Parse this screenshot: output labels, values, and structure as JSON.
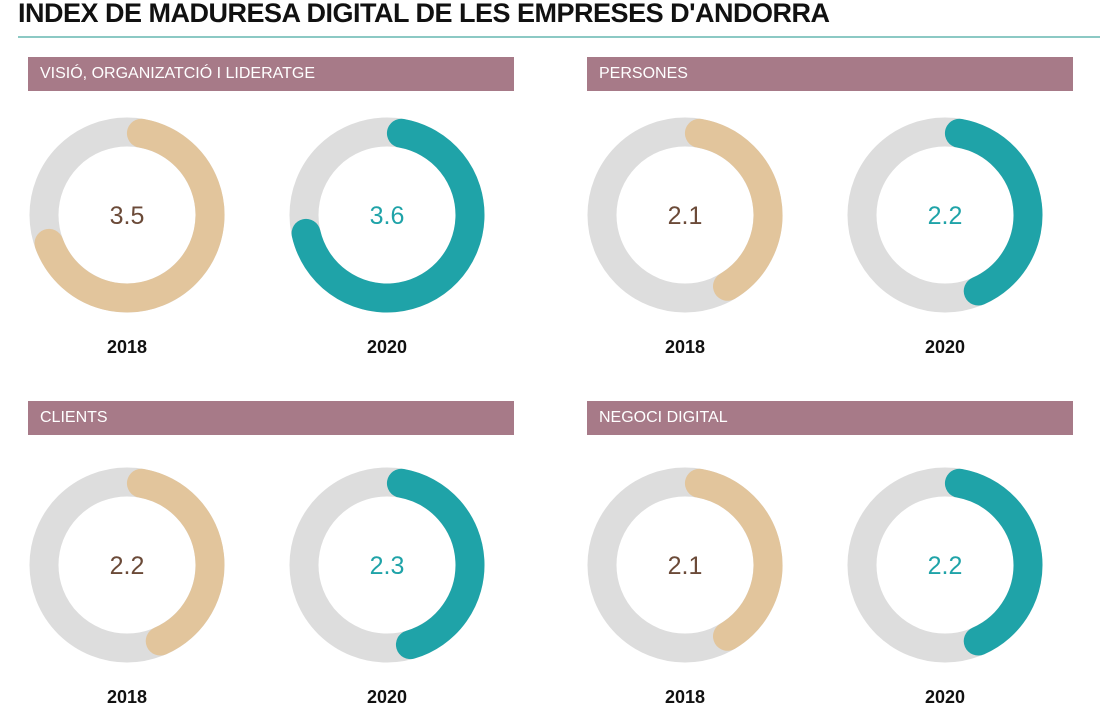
{
  "title": "INDEX DE MADURESA DIGITAL DE LES EMPRESES D'ANDORRA",
  "colors": {
    "track": "#dddddd",
    "y2018": "#e2c59c",
    "y2018_text": "#6b4a38",
    "y2020": "#1fa3a8",
    "y2020_text": "#1fa3a8",
    "header": "#a77a88"
  },
  "chart_data": [
    {
      "type": "donut",
      "title": "VISIÓ, ORGANIZATCIÓ I LIDERATGE",
      "max": 5,
      "categories": [
        "2018",
        "2020"
      ],
      "values": [
        3.5,
        3.6
      ],
      "labels": [
        "3.5",
        "3.6"
      ]
    },
    {
      "type": "donut",
      "title": "PERSONES",
      "max": 5,
      "categories": [
        "2018",
        "2020"
      ],
      "values": [
        2.1,
        2.2
      ],
      "labels": [
        "2.1",
        "2.2"
      ]
    },
    {
      "type": "donut",
      "title": "CLIENTS",
      "max": 5,
      "categories": [
        "2018",
        "2020"
      ],
      "values": [
        2.2,
        2.3
      ],
      "labels": [
        "2.2",
        "2.3"
      ]
    },
    {
      "type": "donut",
      "title": "NEGOCI DIGITAL",
      "max": 5,
      "categories": [
        "2018",
        "2020"
      ],
      "values": [
        2.1,
        2.2
      ],
      "labels": [
        "2.1",
        "2.2"
      ]
    }
  ]
}
